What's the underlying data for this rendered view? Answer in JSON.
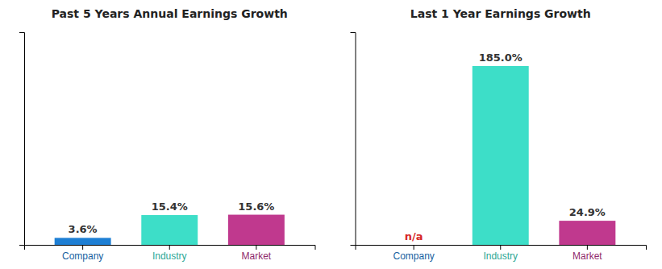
{
  "chart_data": [
    {
      "type": "bar",
      "title": "Past 5 Years Annual Earnings Growth",
      "categories": [
        "Company",
        "Industry",
        "Market"
      ],
      "values": [
        3.6,
        15.4,
        15.6
      ],
      "value_labels": [
        "3.6%",
        "15.4%",
        "15.6%"
      ],
      "colors": [
        "#1e7fd4",
        "#3ddec8",
        "#c0398e"
      ],
      "ylim": [
        0,
        110
      ],
      "data_labels": true,
      "tick_labels": "x",
      "grid": false
    },
    {
      "type": "bar",
      "title": "Last 1 Year Earnings Growth",
      "categories": [
        "Company",
        "Industry",
        "Market"
      ],
      "values": [
        null,
        185.0,
        24.9
      ],
      "value_labels": [
        "n/a",
        "185.0%",
        "24.9%"
      ],
      "colors": [
        "#1e7fd4",
        "#3ddec8",
        "#c0398e"
      ],
      "ylim": [
        0,
        220
      ],
      "data_labels": true,
      "tick_labels": "x",
      "grid": false
    }
  ]
}
